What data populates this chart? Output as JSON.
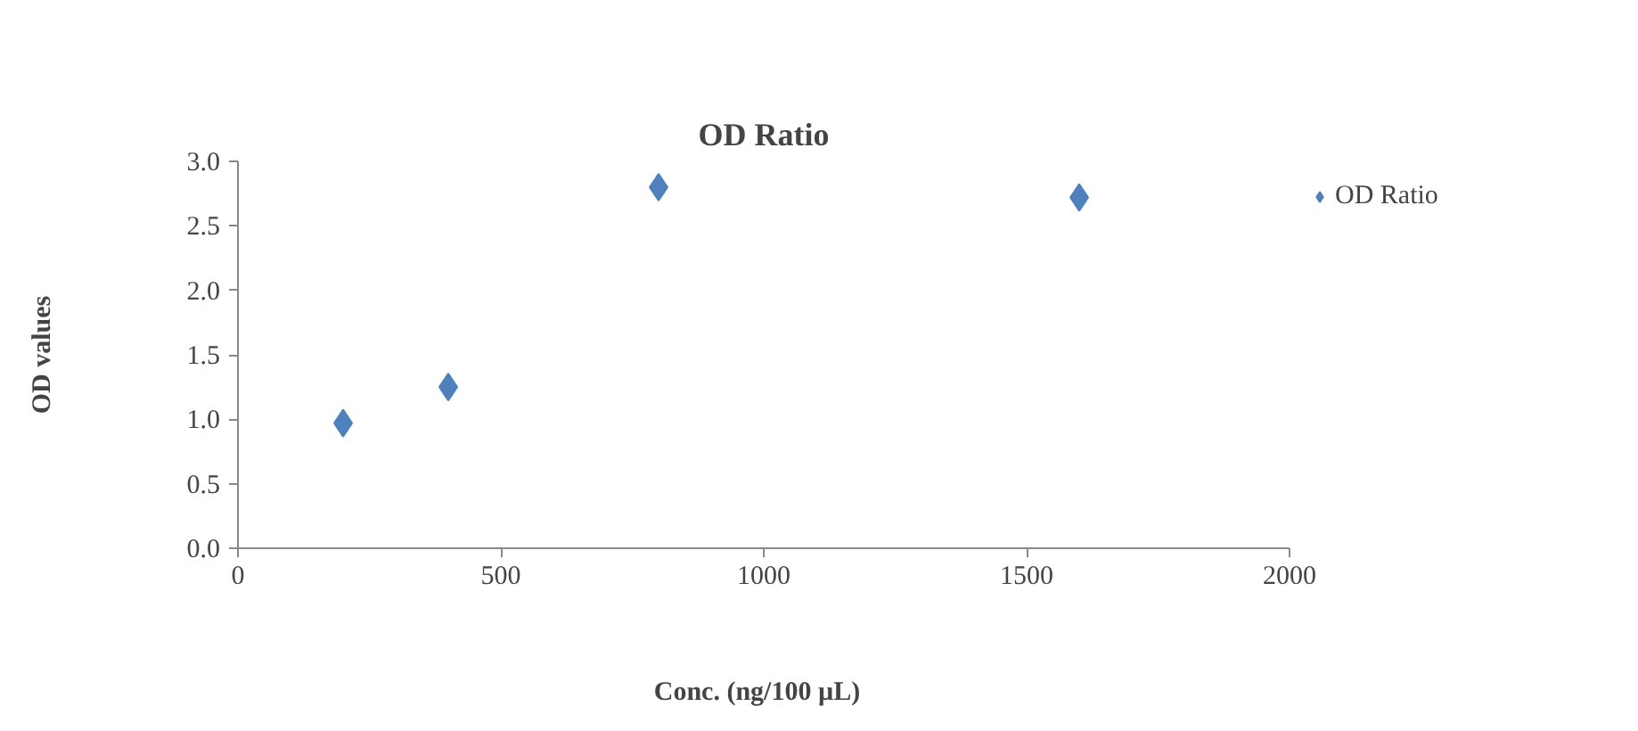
{
  "chart_data": {
    "type": "scatter",
    "title": "OD Ratio",
    "xlabel": "Conc.   (ng/100 µL)",
    "ylabel": "OD values",
    "x": [
      200,
      400,
      800,
      1600
    ],
    "series": [
      {
        "name": "OD Ratio",
        "color": "#4f81bd",
        "values": [
          0.97,
          1.25,
          2.8,
          2.72
        ]
      }
    ],
    "xlim": [
      0,
      2000
    ],
    "xticks": [
      0,
      500,
      1000,
      1500,
      2000
    ],
    "ylim": [
      0,
      3
    ],
    "yticks": [
      {
        "value": 0,
        "label": "0.0"
      },
      {
        "value": 0.5,
        "label": "0.5"
      },
      {
        "value": 1,
        "label": "1.0"
      },
      {
        "value": 1.5,
        "label": "1.5"
      },
      {
        "value": 2,
        "label": "2.0"
      },
      {
        "value": 2.5,
        "label": "2.5"
      },
      {
        "value": 3,
        "label": "3.0"
      }
    ],
    "marker": "diamond",
    "grid": false,
    "legend": "right"
  }
}
